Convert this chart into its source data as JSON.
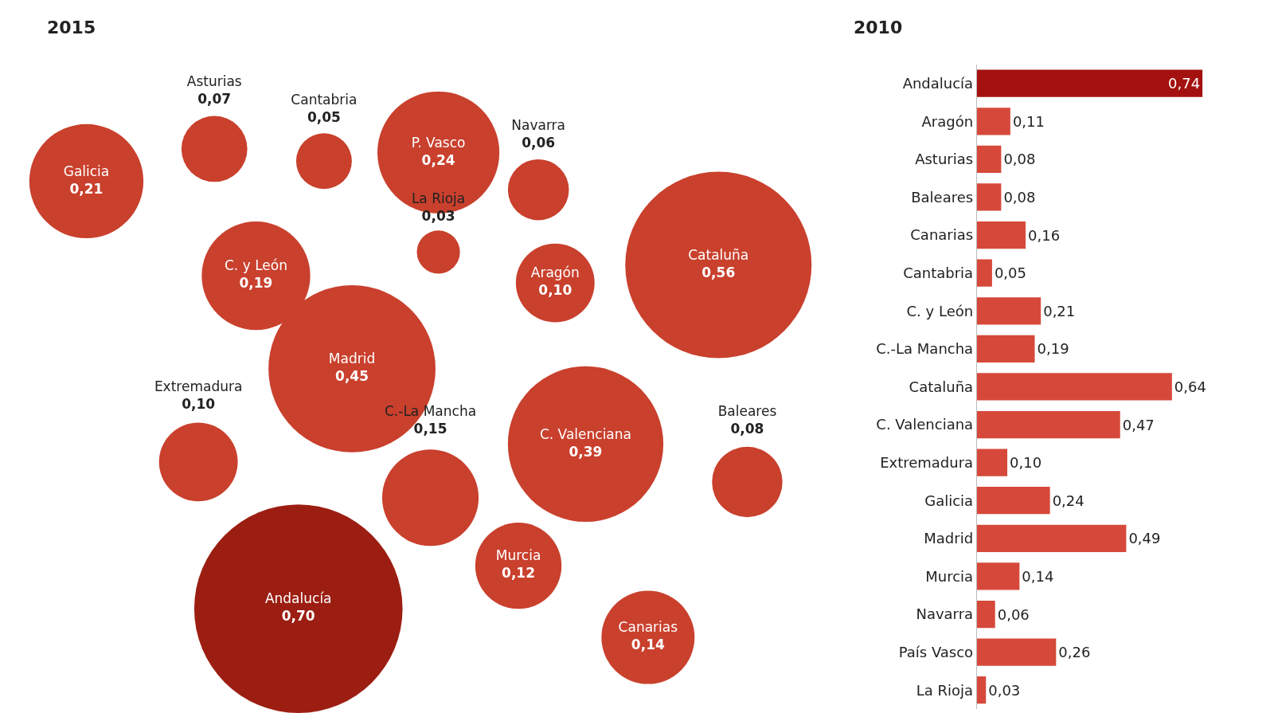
{
  "chart_data": [
    {
      "type": "other",
      "title": "2015",
      "categories": [
        "Galicia",
        "Asturias",
        "Cantabria",
        "P. Vasco",
        "Navarra",
        "La Rioja",
        "C. y León",
        "Aragón",
        "Cataluña",
        "Madrid",
        "Extremadura",
        "C.-La Mancha",
        "C. Valenciana",
        "Baleares",
        "Murcia",
        "Andalucía",
        "Canarias"
      ],
      "values": [
        0.21,
        0.07,
        0.05,
        0.24,
        0.06,
        0.03,
        0.19,
        0.1,
        0.56,
        0.45,
        0.1,
        0.15,
        0.39,
        0.08,
        0.12,
        0.7,
        0.14
      ],
      "value_labels": [
        "0,21",
        "0,07",
        "0,05",
        "0,24",
        "0,06",
        "0,03",
        "0,19",
        "0,10",
        "0,56",
        "0,45",
        "0,10",
        "0,15",
        "0,39",
        "0,08",
        "0,12",
        "0,70",
        "0,14"
      ],
      "colors": [
        "#c9402d",
        "#c9402d",
        "#c9402d",
        "#c9402d",
        "#c9402d",
        "#c9402d",
        "#c9402d",
        "#c9402d",
        "#c9402d",
        "#c9402d",
        "#c9402d",
        "#c9402d",
        "#c9402d",
        "#c9402d",
        "#c9402d",
        "#9c1e12",
        "#c9402d"
      ]
    },
    {
      "type": "bar",
      "orientation": "horizontal",
      "title": "2010",
      "categories": [
        "Andalucía",
        "Aragón",
        "Asturias",
        "Baleares",
        "Canarias",
        "Cantabria",
        "C. y León",
        "C.-La Mancha",
        "Cataluña",
        "C. Valenciana",
        "Extremadura",
        "Galicia",
        "Madrid",
        "Murcia",
        "Navarra",
        "País Vasco",
        "La Rioja"
      ],
      "values": [
        0.74,
        0.11,
        0.08,
        0.08,
        0.16,
        0.05,
        0.21,
        0.19,
        0.64,
        0.47,
        0.1,
        0.24,
        0.49,
        0.14,
        0.06,
        0.26,
        0.03
      ],
      "value_labels": [
        "0,74",
        "0,11",
        "0,08",
        "0,08",
        "0,16",
        "0,05",
        "0,21",
        "0,19",
        "0,64",
        "0,47",
        "0,10",
        "0,24",
        "0,49",
        "0,14",
        "0,06",
        "0,26",
        "0,03"
      ],
      "colors": [
        "#a3120f",
        "#d6493a",
        "#d6493a",
        "#d6493a",
        "#d6493a",
        "#d6493a",
        "#d6493a",
        "#d6493a",
        "#d6493a",
        "#d6493a",
        "#d6493a",
        "#d6493a",
        "#d6493a",
        "#d6493a",
        "#d6493a",
        "#d6493a",
        "#d6493a"
      ]
    }
  ]
}
